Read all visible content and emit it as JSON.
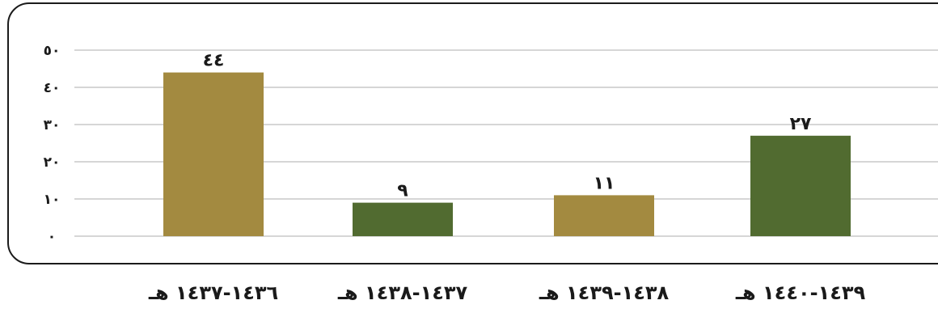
{
  "chart_data": {
    "type": "bar",
    "categories": [
      "١٤٣٦-١٤٣٧ هـ",
      "١٤٣٧-١٤٣٨ هـ",
      "١٤٣٨-١٤٣٩ هـ",
      "١٤٣٩-١٤٤٠ هـ"
    ],
    "values": [
      44,
      9,
      11,
      27
    ],
    "data_labels": [
      "٤٤",
      "٩",
      "١١",
      "٢٧"
    ],
    "bar_colors": [
      "#a38a40",
      "#516b30",
      "#a38a40",
      "#516b30"
    ],
    "ylim": [
      0,
      50
    ],
    "yticks": [
      0,
      10,
      20,
      30,
      40,
      50
    ],
    "ytick_labels": [
      "٠",
      "١٠",
      "٢٠",
      "٣٠",
      "٤٠",
      "٥٠"
    ],
    "grid": true,
    "legend": "none",
    "title": "",
    "xlabel": "",
    "ylabel": ""
  }
}
